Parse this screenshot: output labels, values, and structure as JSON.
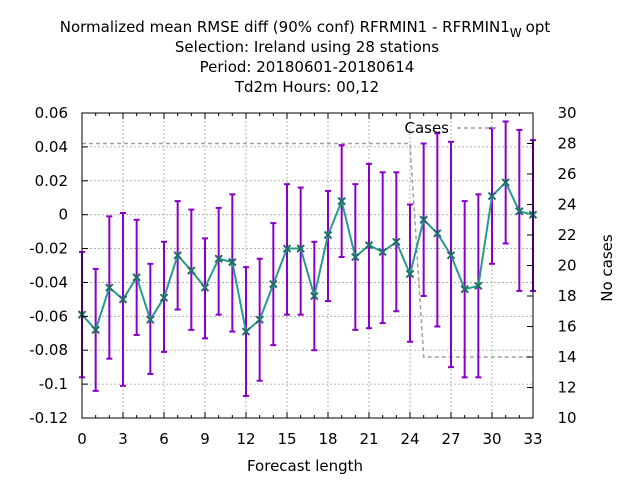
{
  "chart_data": {
    "type": "line",
    "title_lines": [
      "Normalized mean RMSE diff (90% conf) RFRMIN1 - RFRMIN1",
      "Selection: Ireland using    28 stations",
      "Period: 20180601-20180614",
      "Td2m   Hours:  00,12"
    ],
    "title_subscript": "W",
    "title_suffix": "opt",
    "xlabel": "Forecast length",
    "ylabel_right": "No cases",
    "xlim": [
      0,
      33
    ],
    "ylim": [
      -0.12,
      0.06
    ],
    "y2lim": [
      10,
      30
    ],
    "x_ticks": [
      "0",
      "3",
      "6",
      "9",
      "12",
      "15",
      "18",
      "21",
      "24",
      "27",
      "30",
      "33"
    ],
    "y_ticks": [
      "0.06",
      "0.04",
      "0.02",
      "0",
      "-0.02",
      "-0.04",
      "-0.06",
      "-0.08",
      "-0.1",
      "-0.12"
    ],
    "y2_ticks": [
      "30",
      "28",
      "26",
      "24",
      "22",
      "20",
      "18",
      "16",
      "14",
      "12",
      "10"
    ],
    "grid": true,
    "legend": "top-right",
    "colors": {
      "line": "#2a9a8a",
      "errorbar": "#8a00c8",
      "cases": "#a0a0a0"
    },
    "series": [
      {
        "kind": "mean_with_errorbars",
        "x": [
          0,
          1,
          2,
          3,
          4,
          5,
          6,
          7,
          8,
          9,
          10,
          11,
          12,
          13,
          14,
          15,
          16,
          17,
          18,
          19,
          20,
          21,
          22,
          23,
          24,
          25,
          26,
          27,
          28,
          29,
          30,
          31,
          32,
          33
        ],
        "y": [
          -0.059,
          -0.068,
          -0.043,
          -0.05,
          -0.037,
          -0.062,
          -0.049,
          -0.024,
          -0.033,
          -0.043,
          -0.026,
          -0.028,
          -0.069,
          -0.062,
          -0.041,
          -0.02,
          -0.02,
          -0.048,
          -0.012,
          0.008,
          -0.025,
          -0.018,
          -0.022,
          -0.016,
          -0.035,
          -0.003,
          -0.011,
          -0.024,
          -0.044,
          -0.042,
          0.011,
          0.019,
          0.002,
          0.0
        ],
        "y_low": [
          -0.096,
          -0.104,
          -0.085,
          -0.101,
          -0.071,
          -0.094,
          -0.081,
          -0.056,
          -0.068,
          -0.073,
          -0.059,
          -0.069,
          -0.107,
          -0.098,
          -0.077,
          -0.059,
          -0.059,
          -0.08,
          -0.051,
          -0.025,
          -0.068,
          -0.067,
          -0.064,
          -0.057,
          -0.075,
          -0.048,
          -0.066,
          -0.09,
          -0.096,
          -0.096,
          -0.029,
          -0.017,
          -0.045,
          -0.045
        ],
        "y_high": [
          -0.022,
          -0.032,
          -0.001,
          0.001,
          -0.003,
          -0.029,
          -0.016,
          0.008,
          0.003,
          -0.014,
          0.004,
          0.012,
          -0.031,
          -0.026,
          -0.005,
          0.018,
          0.016,
          -0.016,
          0.014,
          0.041,
          0.018,
          0.03,
          0.025,
          0.025,
          0.006,
          0.042,
          0.048,
          0.043,
          0.008,
          0.012,
          0.051,
          0.055,
          0.05,
          0.044
        ]
      },
      {
        "name": "Cases",
        "kind": "step_secondary_axis",
        "x": [
          0,
          24,
          25,
          33
        ],
        "y": [
          28,
          28,
          14,
          14
        ]
      }
    ]
  }
}
